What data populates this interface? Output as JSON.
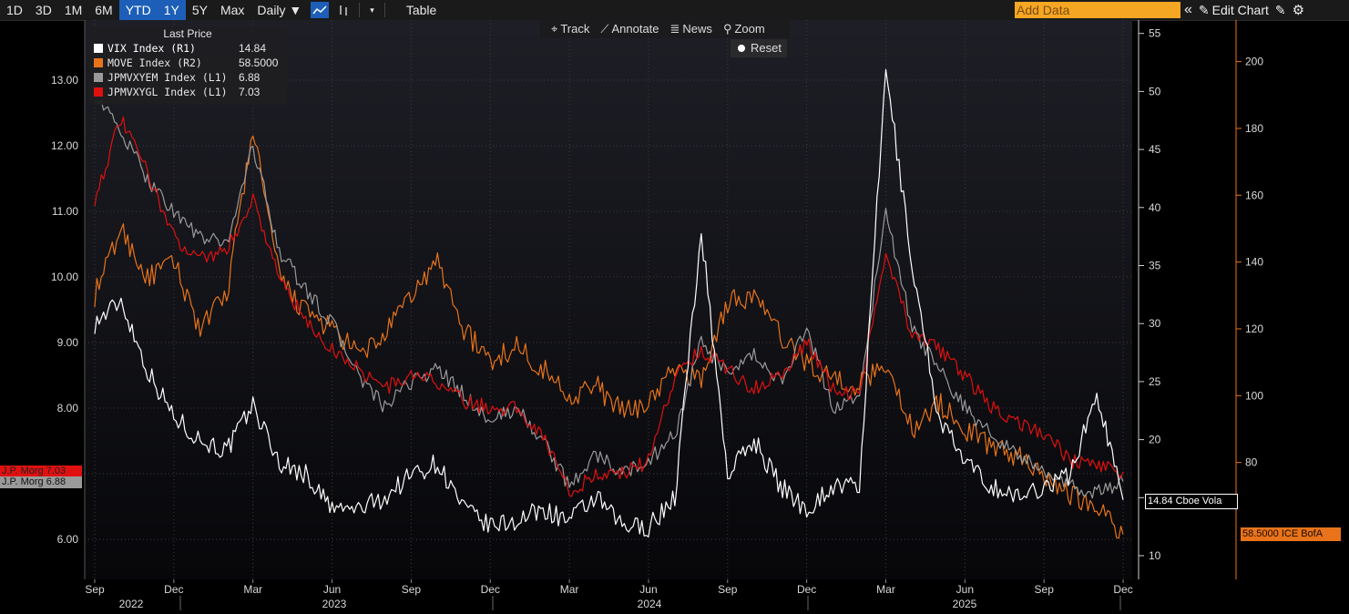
{
  "toolbar": {
    "periods": [
      "1D",
      "3D",
      "1M",
      "6M",
      "YTD",
      "1Y",
      "5Y",
      "Max"
    ],
    "active_periods": [
      "YTD",
      "1Y"
    ],
    "frequency": "Daily ▼",
    "table_label": "Table",
    "add_data_placeholder": "Add Data",
    "edit_chart_label": "Edit Chart"
  },
  "chart_tools": {
    "track": "Track",
    "annotate": "Annotate",
    "news": "News",
    "zoom": "Zoom",
    "reset": "Reset"
  },
  "legend": {
    "title": "Last Price",
    "items": [
      {
        "name": "VIX Index  (R1)",
        "value": "14.84",
        "color": "#ffffff"
      },
      {
        "name": "MOVE Index  (R2)",
        "value": "58.5000",
        "color": "#e8731a"
      },
      {
        "name": "JPMVXYEM Index  (L1)",
        "value": "6.88",
        "color": "#9a9a9a"
      },
      {
        "name": "JPMVXYGL Index  (L1)",
        "value": "7.03",
        "color": "#e01010"
      }
    ]
  },
  "tags": {
    "left_red": "J.P. Morg 7.03",
    "left_gray": "J.P. Morg 6.88",
    "right_vix": "14.84 Cboe Vola",
    "right_move": "58.5000 ICE BofA"
  },
  "chart_data": {
    "type": "line",
    "axes": {
      "left": {
        "ticks": [
          "6.00",
          "7.00",
          "8.00",
          "9.00",
          "10.00",
          "11.00",
          "12.00",
          "13.00"
        ]
      },
      "right1": {
        "ticks": [
          "10",
          "15",
          "20",
          "25",
          "30",
          "35",
          "40",
          "45",
          "50",
          "55"
        ]
      },
      "right2": {
        "ticks": [
          "80",
          "100",
          "120",
          "140",
          "160",
          "180",
          "200"
        ]
      }
    },
    "month_labels": [
      "Sep",
      "Dec",
      "Mar",
      "Jun",
      "Sep",
      "Dec",
      "Mar",
      "Jun",
      "Sep",
      "Dec",
      "Mar",
      "Jun",
      "Sep",
      "Dec"
    ],
    "year_labels": [
      "2022",
      "2023",
      "2024",
      "2025"
    ],
    "x_dates": [
      "2022-09",
      "2022-10",
      "2022-11",
      "2022-12",
      "2023-01",
      "2023-02",
      "2023-03",
      "2023-04",
      "2023-05",
      "2023-06",
      "2023-07",
      "2023-08",
      "2023-09",
      "2023-10",
      "2023-11",
      "2023-12",
      "2024-01",
      "2024-02",
      "2024-03",
      "2024-04",
      "2024-05",
      "2024-06",
      "2024-07",
      "2024-08",
      "2024-09",
      "2024-10",
      "2024-11",
      "2024-12",
      "2025-01",
      "2025-02",
      "2025-03",
      "2025-04",
      "2025-05",
      "2025-06",
      "2025-07",
      "2025-08",
      "2025-09",
      "2025-10",
      "2025-11",
      "2025-12"
    ],
    "series": [
      {
        "name": "VIX Index  (R1)",
        "axis": "right1",
        "color": "#ffffff",
        "values": [
          30,
          32,
          26,
          22,
          20,
          19,
          23,
          18,
          17,
          14,
          14,
          15,
          17,
          18,
          14,
          12.5,
          13,
          14,
          13,
          15,
          12.5,
          12.5,
          15,
          38,
          17,
          20,
          16,
          14,
          16,
          16,
          52,
          35,
          22,
          18,
          16,
          15,
          16,
          17,
          24,
          14.8
        ]
      },
      {
        "name": "MOVE Index  (R2)",
        "axis": "right2",
        "color": "#e8731a",
        "values": [
          130,
          150,
          135,
          140,
          120,
          130,
          180,
          135,
          125,
          120,
          112,
          118,
          130,
          140,
          120,
          110,
          115,
          108,
          100,
          103,
          95,
          98,
          108,
          105,
          128,
          130,
          118,
          110,
          105,
          103,
          110,
          90,
          98,
          90,
          85,
          82,
          77,
          70,
          68,
          58.5
        ]
      },
      {
        "name": "JPMVXYEM Index  (L1)",
        "axis": "left",
        "color": "#9a9a9a",
        "values": [
          12.8,
          12.2,
          11.5,
          11.0,
          10.6,
          10.5,
          12.0,
          10.4,
          9.8,
          9.3,
          8.5,
          8.0,
          8.4,
          8.6,
          8.2,
          7.8,
          8.0,
          7.5,
          6.8,
          7.3,
          7.0,
          7.2,
          7.6,
          9.0,
          8.5,
          8.8,
          8.4,
          9.2,
          8.0,
          8.2,
          11.0,
          9.2,
          8.6,
          8.0,
          7.6,
          7.3,
          7.0,
          6.8,
          6.7,
          6.88
        ]
      },
      {
        "name": "JPMVXYGL Index  (L1)",
        "axis": "left",
        "color": "#e01010",
        "values": [
          11.2,
          12.4,
          11.6,
          10.6,
          10.3,
          10.4,
          11.2,
          10.0,
          9.3,
          8.9,
          8.6,
          8.3,
          8.5,
          8.4,
          8.1,
          8.0,
          8.0,
          7.6,
          6.7,
          7.0,
          7.0,
          7.2,
          8.5,
          8.9,
          8.6,
          8.3,
          8.5,
          9.0,
          8.3,
          8.2,
          10.4,
          9.1,
          8.9,
          8.5,
          8.0,
          7.8,
          7.6,
          7.2,
          7.1,
          7.03
        ]
      }
    ]
  }
}
